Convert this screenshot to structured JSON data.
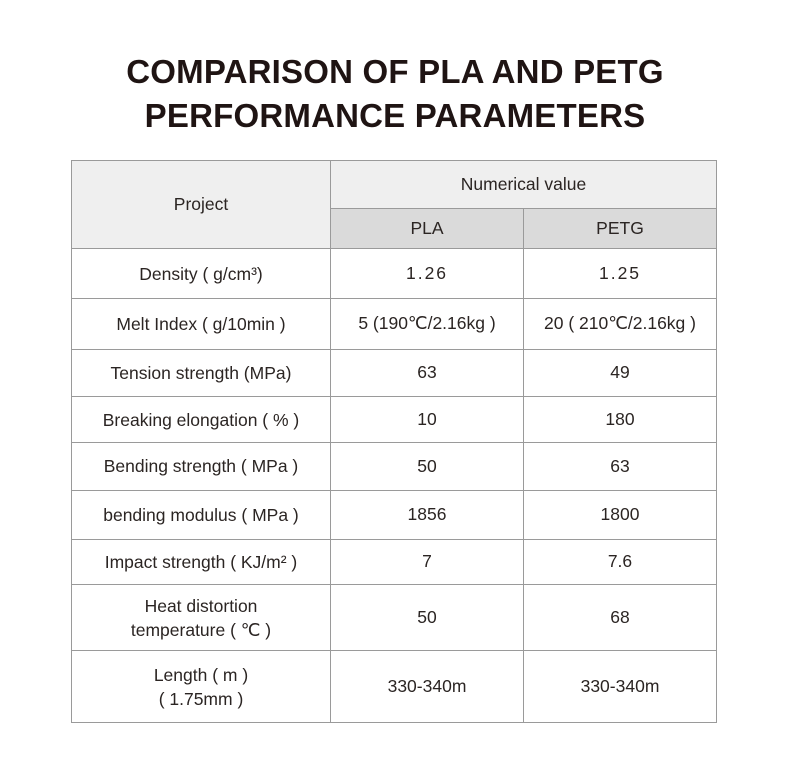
{
  "title": {
    "line1": "COMPARISON OF PLA AND PETG",
    "line2": "PERFORMANCE PARAMETERS"
  },
  "table": {
    "header_project": "Project",
    "header_group": "Numerical value",
    "col_pla": "PLA",
    "col_petg": "PETG",
    "rows": [
      {
        "label": [
          "Density ( g/cm³)"
        ],
        "pla": "1.26",
        "petg": "1.25"
      },
      {
        "label": [
          "Melt Index ( g/10min )"
        ],
        "pla": "5 (190℃/2.16kg )",
        "petg": "20 ( 210℃/2.16kg )"
      },
      {
        "label": [
          "Tension strength (MPa)"
        ],
        "pla": "63",
        "petg": "49"
      },
      {
        "label": [
          "Breaking elongation ( % )"
        ],
        "pla": "10",
        "petg": "180"
      },
      {
        "label": [
          "Bending strength ( MPa )"
        ],
        "pla": "50",
        "petg": "63"
      },
      {
        "label": [
          "bending modulus ( MPa )"
        ],
        "pla": "1856",
        "petg": "1800"
      },
      {
        "label": [
          "Impact strength ( KJ/m² )"
        ],
        "pla": "7",
        "petg": "7.6"
      },
      {
        "label": [
          "Heat distortion",
          "temperature ( ℃ )"
        ],
        "pla": "50",
        "petg": "68"
      },
      {
        "label": [
          "Length ( m )",
          "( 1.75mm )"
        ],
        "pla": "330-340m",
        "petg": "330-340m"
      }
    ]
  }
}
